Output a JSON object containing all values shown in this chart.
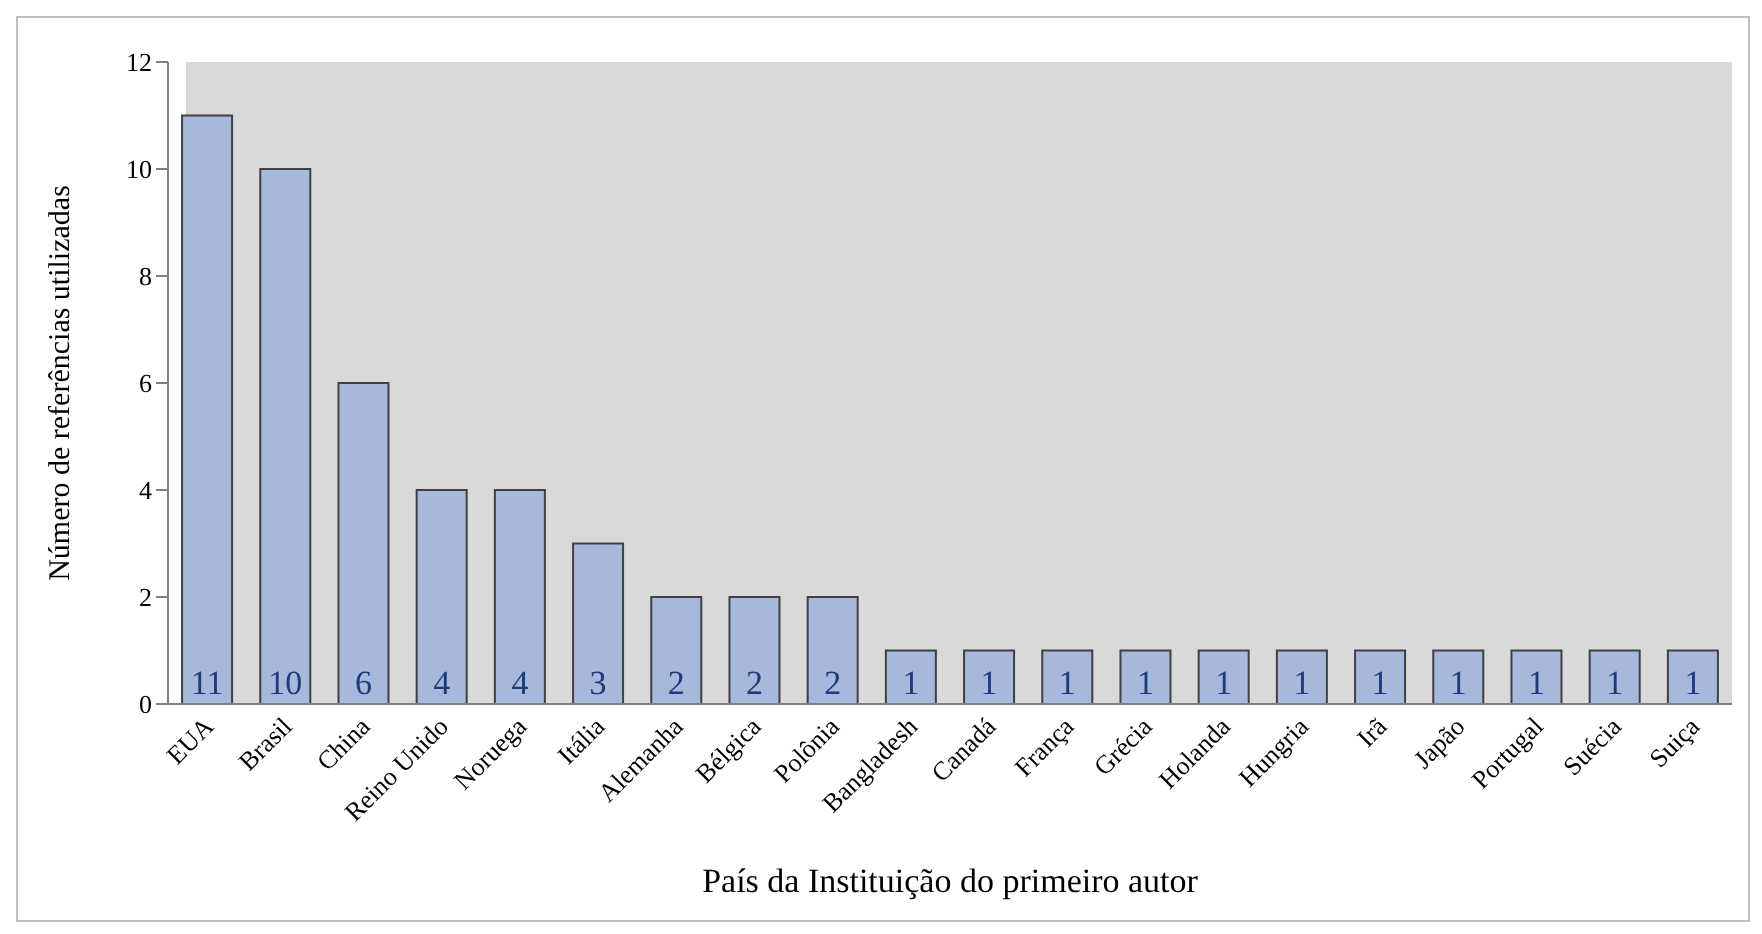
{
  "chart_data": {
    "type": "bar",
    "xlabel": "País da Instituição do primeiro autor",
    "ylabel": "Número de referências utilizadas",
    "categories": [
      "EUA",
      "Brasil",
      "China",
      "Reino Unido",
      "Noruega",
      "Itália",
      "Alemanha",
      "Bélgica",
      "Polônia",
      "Bangladesh",
      "Canadá",
      "França",
      "Grécia",
      "Holanda",
      "Hungria",
      "Irã",
      "Japão",
      "Portugal",
      "Suécia",
      "Suiça"
    ],
    "values": [
      11,
      10,
      6,
      4,
      4,
      3,
      2,
      2,
      2,
      1,
      1,
      1,
      1,
      1,
      1,
      1,
      1,
      1,
      1,
      1
    ],
    "color": "#a6b9dc",
    "ylim": [
      0,
      12
    ],
    "yticks": [
      0,
      2,
      4,
      6,
      8,
      10,
      12
    ],
    "data_labels": true
  }
}
